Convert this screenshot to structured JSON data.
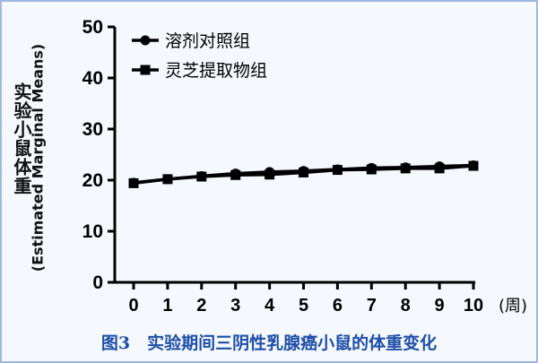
{
  "caption": "图3　实验期间三阴性乳腺癌小鼠的体重变化",
  "chart_data": {
    "type": "line",
    "ylabel_cn": "实验小鼠体重",
    "ylabel_en": "(Estimated Marginal Means)",
    "x_unit": "(周)",
    "x": [
      0,
      1,
      2,
      3,
      4,
      5,
      6,
      7,
      8,
      9,
      10
    ],
    "ylim": [
      0,
      50
    ],
    "yticks": [
      0,
      10,
      20,
      30,
      40,
      50
    ],
    "legend_position": "top-left",
    "series": [
      {
        "name": "溶剂对照组",
        "marker": "circle",
        "values": [
          19.5,
          20.2,
          20.8,
          21.3,
          21.6,
          21.8,
          22.1,
          22.4,
          22.5,
          22.7,
          22.9
        ]
      },
      {
        "name": "灵芝提取物组",
        "marker": "square",
        "values": [
          19.4,
          20.2,
          20.7,
          21.0,
          21.1,
          21.5,
          22.0,
          22.1,
          22.3,
          22.3,
          22.8
        ]
      }
    ],
    "colors": {
      "line": "#000000",
      "caption": "#1f4fa8",
      "border": "#9fb7e3"
    }
  }
}
